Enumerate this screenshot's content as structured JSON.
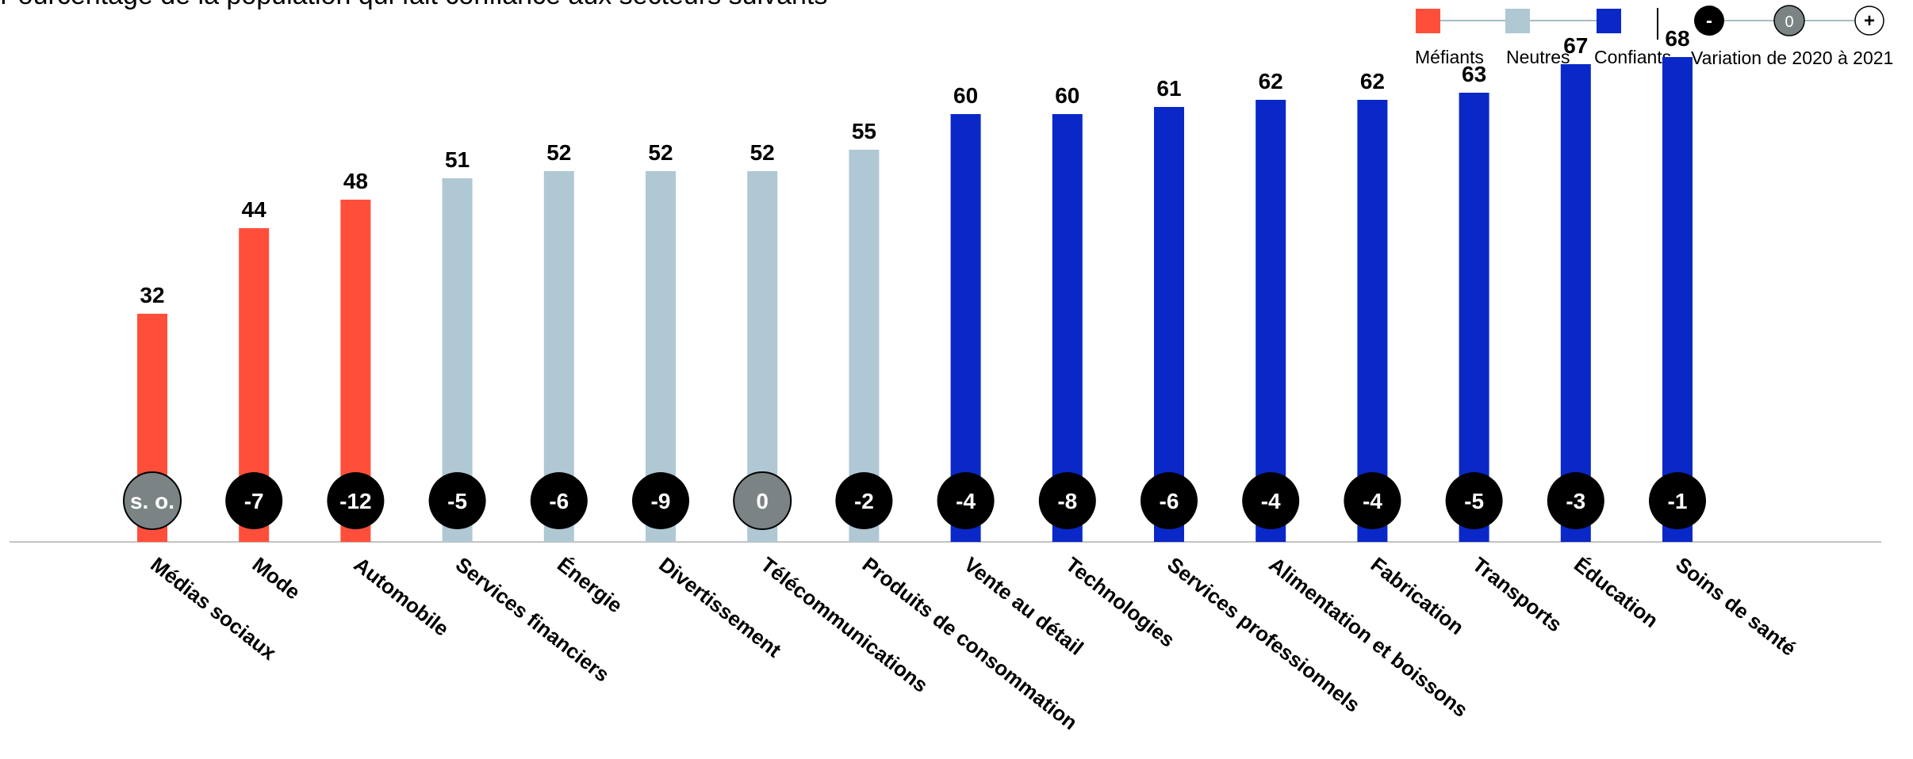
{
  "chart_data": {
    "type": "bar",
    "title": "Pourcentage de la population qui fait confiance aux secteurs suivants",
    "categories": [
      "Médias sociaux",
      "Mode",
      "Automobile",
      "Services financiers",
      "Énergie",
      "Divertissement",
      "Télécommunications",
      "Produits de consommation",
      "Vente au détail",
      "Technologies",
      "Services professionnels",
      "Alimentation et boissons",
      "Fabrication",
      "Transports",
      "Éducation",
      "Soins de santé"
    ],
    "values": [
      32,
      44,
      48,
      51,
      52,
      52,
      52,
      55,
      60,
      60,
      61,
      62,
      62,
      63,
      67,
      68
    ],
    "changes": [
      "s. o.",
      "-7",
      "-12",
      "-5",
      "-6",
      "-9",
      "0",
      "-2",
      "-4",
      "-8",
      "-6",
      "-4",
      "-4",
      "-5",
      "-3",
      "-1"
    ],
    "change_status": [
      "neutral",
      "negative",
      "negative",
      "negative",
      "negative",
      "negative",
      "neutral",
      "negative",
      "negative",
      "negative",
      "negative",
      "negative",
      "negative",
      "negative",
      "negative",
      "negative"
    ],
    "trust_groups": [
      "mefiants",
      "mefiants",
      "mefiants",
      "neutres",
      "neutres",
      "neutres",
      "neutres",
      "neutres",
      "confiants",
      "confiants",
      "confiants",
      "confiants",
      "confiants",
      "confiants",
      "confiants",
      "confiants"
    ],
    "ylim": [
      0,
      100
    ],
    "grid": false,
    "legend": {
      "placement": "top-right",
      "groups": [
        {
          "key": "mefiants",
          "label": "Méfiants",
          "color": "#ff4f3b"
        },
        {
          "key": "neutres",
          "label": "Neutres",
          "color": "#afc8d3"
        },
        {
          "key": "confiants",
          "label": "Confiants",
          "color": "#0a28c8"
        }
      ],
      "variation": {
        "label": "Variation de 2020 à 2021",
        "markers": [
          {
            "symbol": "-",
            "meaning": "negative",
            "color": "#000000"
          },
          {
            "symbol": "0",
            "meaning": "neutral",
            "color": "#7b8384"
          },
          {
            "symbol": "+",
            "meaning": "positive",
            "color": "#ffffff"
          }
        ]
      }
    }
  },
  "colors": {
    "negative_circle": "#000000",
    "neutral_circle": "#7b8384",
    "baseline": "#c4c4c4",
    "legend_connector": "#a7bcc5"
  }
}
